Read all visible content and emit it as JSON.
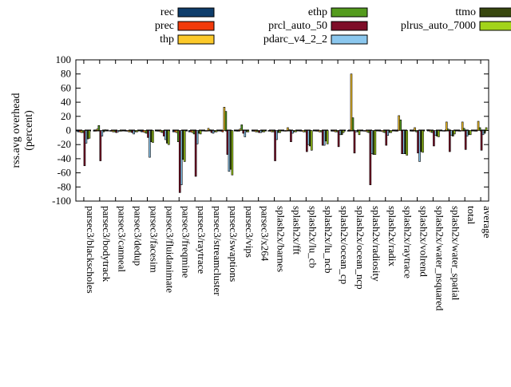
{
  "figure": {
    "ylabel_line1": "rss.avg overhead",
    "ylabel_line2": "(percent)"
  },
  "chart_data": {
    "type": "bar",
    "title": "",
    "xlabel": "",
    "ylabel": "rss.avg overhead (percent)",
    "ylim": [
      -100,
      100
    ],
    "ytick_step": 20,
    "grid": false,
    "zero_line": "dashed-black",
    "legend_position": "top",
    "legend_columns": [
      [
        "rec",
        "prec",
        "thp"
      ],
      [
        "ethp",
        "prcl_auto_50",
        "pdarc_v4_2_2"
      ],
      [
        "ttmo",
        "plrus_auto_7000"
      ]
    ],
    "categories": [
      "parsec3/blackscholes",
      "parsec3/bodytrack",
      "parsec3/canneal",
      "parsec3/dedup",
      "parsec3/facesim",
      "parsec3/fluidanimate",
      "parsec3/freqmine",
      "parsec3/raytrace",
      "parsec3/streamcluster",
      "parsec3/swaptions",
      "parsec3/vips",
      "parsec3/x264",
      "splash2x/barnes",
      "splash2x/fft",
      "splash2x/lu_cb",
      "splash2x/lu_ncb",
      "splash2x/ocean_cp",
      "splash2x/ocean_ncp",
      "splash2x/radiosity",
      "splash2x/radix",
      "splash2x/raytrace",
      "splash2x/volrend",
      "splash2x/water_nsquared",
      "splash2x/water_spatial",
      "total",
      "average"
    ],
    "series": [
      {
        "name": "rec",
        "color": "#0e3d6b",
        "values": [
          -2,
          -1,
          -1,
          -1,
          -2,
          -1,
          -2,
          -2,
          -1,
          -1,
          -1,
          -1,
          -1,
          -1,
          -1,
          -1,
          -1,
          -1,
          -1,
          -1,
          -1,
          -1,
          1,
          -1,
          -1,
          -1
        ]
      },
      {
        "name": "prec",
        "color": "#f23a0a",
        "values": [
          -2,
          -1,
          -1,
          -1,
          -2,
          -1,
          -2,
          -2,
          -1,
          -2,
          -1,
          -1,
          -1,
          -1,
          -1,
          -1,
          -1,
          -1,
          -1,
          -1,
          -1,
          -1,
          1,
          -1,
          -1,
          -1
        ]
      },
      {
        "name": "thp",
        "color": "#fcc92a",
        "values": [
          -3,
          2,
          -2,
          -2,
          -3,
          -2,
          -3,
          -3,
          3,
          33,
          2,
          -2,
          -2,
          4,
          -2,
          -2,
          -2,
          80,
          -2,
          -2,
          21,
          4,
          -2,
          12,
          12,
          13
        ]
      },
      {
        "name": "ethp",
        "color": "#549b1e",
        "values": [
          -3,
          7,
          -2,
          -2,
          -4,
          -3,
          -16,
          -5,
          1,
          27,
          8,
          -2,
          -2,
          1,
          -2,
          -2,
          -2,
          18,
          -3,
          -3,
          15,
          -2,
          -3,
          2,
          3,
          4
        ]
      },
      {
        "name": "prcl_auto_50",
        "color": "#7e0d28",
        "values": [
          -50,
          -43,
          -3,
          -3,
          -10,
          -8,
          -88,
          -65,
          -3,
          -34,
          -4,
          -3,
          -43,
          -16,
          -30,
          -21,
          -23,
          -32,
          -77,
          -21,
          -33,
          -32,
          -22,
          -30,
          -27,
          -28
        ]
      },
      {
        "name": "pdarc_v4_2_2",
        "color": "#8bc7ee",
        "values": [
          -18,
          -8,
          -2,
          -5,
          -38,
          -13,
          -77,
          -19,
          -4,
          -58,
          -9,
          -3,
          -13,
          -4,
          -20,
          -21,
          -6,
          -2,
          -33,
          -7,
          -33,
          -44,
          -7,
          -7,
          -8,
          -6
        ]
      },
      {
        "name": "ttmo",
        "color": "#38470f",
        "values": [
          -12,
          -2,
          -1,
          -2,
          -16,
          -18,
          -41,
          -4,
          -2,
          -55,
          -2,
          -2,
          -3,
          -2,
          -22,
          -15,
          -6,
          -2,
          -34,
          -3,
          -33,
          -30,
          -8,
          -8,
          -6,
          -4
        ]
      },
      {
        "name": "plrus_auto_7000",
        "color": "#a2d31a",
        "values": [
          -11,
          1,
          -1,
          -2,
          -17,
          -20,
          -44,
          -5,
          -2,
          -63,
          -2,
          -2,
          -3,
          -2,
          -28,
          -19,
          -3,
          -6,
          -34,
          -3,
          -35,
          -31,
          -9,
          -5,
          -6,
          4
        ]
      }
    ]
  }
}
